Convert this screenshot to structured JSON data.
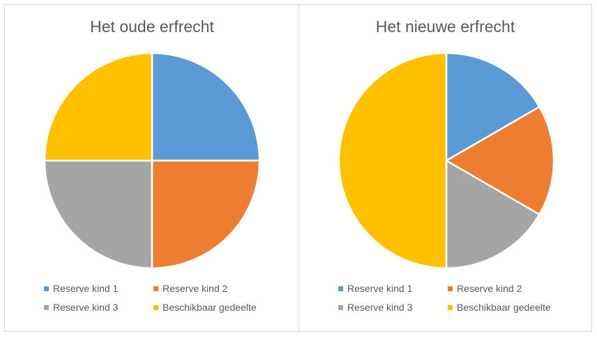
{
  "chart_data": [
    {
      "type": "pie",
      "title": "Het oude erfrecht",
      "categories": [
        "Reserve kind 1",
        "Reserve kind 2",
        "Reserve kind 3",
        "Beschikbaar gedeelte"
      ],
      "values": [
        25,
        25,
        25,
        25
      ],
      "colors": [
        "#5b9bd5",
        "#ed7d31",
        "#a5a5a5",
        "#ffc000"
      ],
      "legend_position": "bottom"
    },
    {
      "type": "pie",
      "title": "Het nieuwe erfrecht",
      "categories": [
        "Reserve kind 1",
        "Reserve kind 2",
        "Reserve kind 3",
        "Beschikbaar gedeelte"
      ],
      "values": [
        16.67,
        16.67,
        16.67,
        50
      ],
      "colors": [
        "#5b9bd5",
        "#ed7d31",
        "#a5a5a5",
        "#ffc000"
      ],
      "legend_position": "bottom"
    }
  ]
}
